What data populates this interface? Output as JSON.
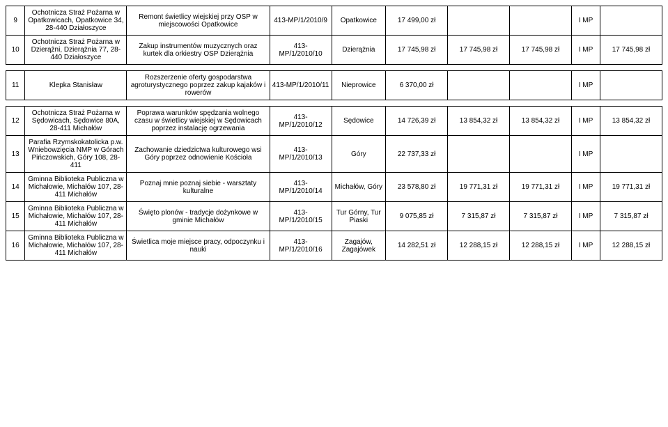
{
  "rows": [
    {
      "num": "9",
      "org": "Ochotnicza Straż Pożarna w Opatkowicach, Opatkowice 34, 28-440 Działoszyce",
      "desc": "Remont świetlicy wiejskiej przy OSP w miejscowości Opatkowice",
      "code": "413-MP/1/2010/9",
      "place": "Opatkowice",
      "a1": "17 499,00 zł",
      "a2": "",
      "a3": "",
      "imp": "I MP",
      "a4": ""
    },
    {
      "num": "10",
      "org": "Ochotnicza Straż Pożarna w Dzierążni, Dzierążnia 77, 28-440 Działoszyce",
      "desc": "Zakup instrumentów muzycznych oraz kurtek dla orkiestry OSP Dzierążnia",
      "code": "413-MP/1/2010/10",
      "place": "Dzierążnia",
      "a1": "17 745,98 zł",
      "a2": "17 745,98 zł",
      "a3": "17 745,98 zł",
      "imp": "I MP",
      "a4": "17 745,98 zł"
    },
    {
      "num": "11",
      "org": "Klepka Stanisław",
      "desc": "Rozszerzenie oferty gospodarstwa agroturystycznego poprzez zakup kajaków i rowerów",
      "code": "413-MP/1/2010/11",
      "place": "Nieprowice",
      "a1": "6 370,00 zł",
      "a2": "",
      "a3": "",
      "imp": "I MP",
      "a4": ""
    },
    {
      "num": "12",
      "org": "Ochotnicza Straż Pożarna w Sędowicach, Sędowice 80A, 28-411 Michałów",
      "desc": "Poprawa warunków spędzania wolnego czasu w świetlicy wiejskiej w Sędowicach poprzez instalację ogrzewania",
      "code": "413-MP/1/2010/12",
      "place": "Sędowice",
      "a1": "14 726,39 zł",
      "a2": "13 854,32 zł",
      "a3": "13 854,32 zł",
      "imp": "I MP",
      "a4": "13 854,32 zł"
    },
    {
      "num": "13",
      "org": "Parafia Rzymskokatolicka p.w. Wniebowzięcia NMP w Górach Pińczowskich, Góry 108, 28-411",
      "desc": "Zachowanie dziedzictwa kulturowego wsi Góry poprzez odnowienie Kościoła",
      "code": "413-MP/1/2010/13",
      "place": "Góry",
      "a1": "22 737,33 zł",
      "a2": "",
      "a3": "",
      "imp": "I MP",
      "a4": ""
    },
    {
      "num": "14",
      "org": "Gminna Biblioteka Publiczna w Michałowie, Michałów 107, 28-411 Michałów",
      "desc": "Poznaj mnie poznaj siebie - warsztaty kulturalne",
      "code": "413-MP/1/2010/14",
      "place": "Michałów, Góry",
      "a1": "23 578,80 zł",
      "a2": "19 771,31 zł",
      "a3": "19 771,31 zł",
      "imp": "I MP",
      "a4": "19 771,31 zł"
    },
    {
      "num": "15",
      "org": "Gminna Biblioteka Publiczna w Michałowie, Michałów 107, 28-411 Michałów",
      "desc": "Święto plonów - tradycje dożynkowe w gminie Michałów",
      "code": "413-MP/1/2010/15",
      "place": "Tur Górny, Tur Piaski",
      "a1": "9 075,85 zł",
      "a2": "7 315,87 zł",
      "a3": "7 315,87 zł",
      "imp": "I MP",
      "a4": "7 315,87 zł"
    },
    {
      "num": "16",
      "org": "Gminna Biblioteka Publiczna w Michałowie, Michałów 107, 28-411 Michałów",
      "desc": "Świetlica moje miejsce pracy, odpoczynku i nauki",
      "code": "413-MP/1/2010/16",
      "place": "Zagajów, Zagajówek",
      "a1": "14 282,51 zł",
      "a2": "12 288,15 zł",
      "a3": "12 288,15 zł",
      "imp": "I MP",
      "a4": "12 288,15 zł"
    }
  ],
  "style": {
    "background": "#ffffff",
    "border_color": "#000000",
    "text_color": "#000000",
    "font_size": 10
  }
}
